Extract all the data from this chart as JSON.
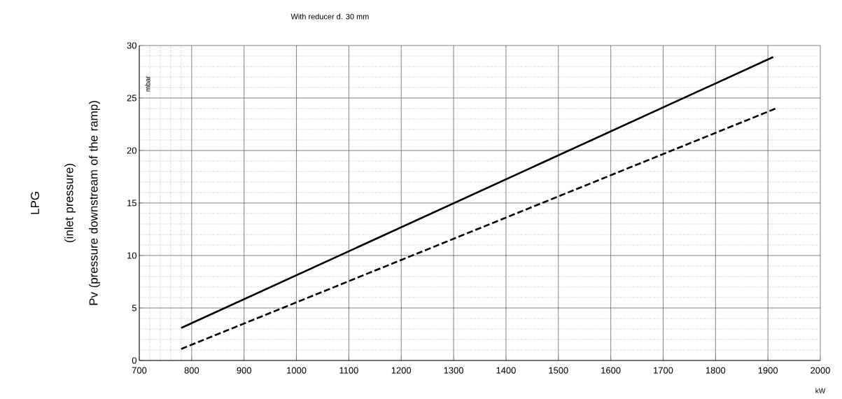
{
  "chart_data": {
    "type": "line",
    "title": "With reducer d. 30 mm",
    "xlabel": "kW",
    "ylabel": "mbar",
    "annotations": [
      "LPG",
      "(inlet pressure)",
      "Pv (pressure downstream of the ramp)"
    ],
    "xlim": [
      700,
      2000
    ],
    "ylim": [
      0,
      30
    ],
    "xticks": [
      700,
      {
        "value": 720,
        "label": null
      },
      {
        "value": 740,
        "label": null
      },
      {
        "value": 760,
        "label": null
      },
      {
        "value": 780,
        "label": null
      },
      800,
      900,
      1000,
      1100,
      1200,
      1300,
      1400,
      1500,
      1600,
      1700,
      1800,
      1900,
      2000
    ],
    "yticks": [
      0,
      {
        "value": 1,
        "label": null
      },
      {
        "value": 2,
        "label": null
      },
      {
        "value": 3,
        "label": null
      },
      {
        "value": 4,
        "label": null
      },
      5,
      {
        "value": 6,
        "label": null
      },
      {
        "value": 7,
        "label": null
      },
      {
        "value": 8,
        "label": null
      },
      {
        "value": 9,
        "label": null
      },
      10,
      {
        "value": 11,
        "label": null
      },
      {
        "value": 12,
        "label": null
      },
      {
        "value": 13,
        "label": null
      },
      {
        "value": 14,
        "label": null
      },
      15,
      {
        "value": 16,
        "label": null
      },
      {
        "value": 17,
        "label": null
      },
      {
        "value": 18,
        "label": null
      },
      {
        "value": 19,
        "label": null
      },
      20,
      {
        "value": 21,
        "label": null
      },
      {
        "value": 22,
        "label": null
      },
      {
        "value": 23,
        "label": null
      },
      {
        "value": 24,
        "label": null
      },
      25,
      {
        "value": 26,
        "label": null
      },
      {
        "value": 27,
        "label": null
      },
      {
        "value": 28,
        "label": null
      },
      {
        "value": 29,
        "label": null
      },
      30
    ],
    "grid": true,
    "series": [
      {
        "color": "#000000",
        "line_style": "solid",
        "x": [
          780,
          1910
        ],
        "values": [
          3.1,
          28.9
        ]
      },
      {
        "color": "#000000",
        "line_style": "dashed",
        "x": [
          780,
          1915
        ],
        "values": [
          1.1,
          24.0
        ]
      }
    ]
  }
}
